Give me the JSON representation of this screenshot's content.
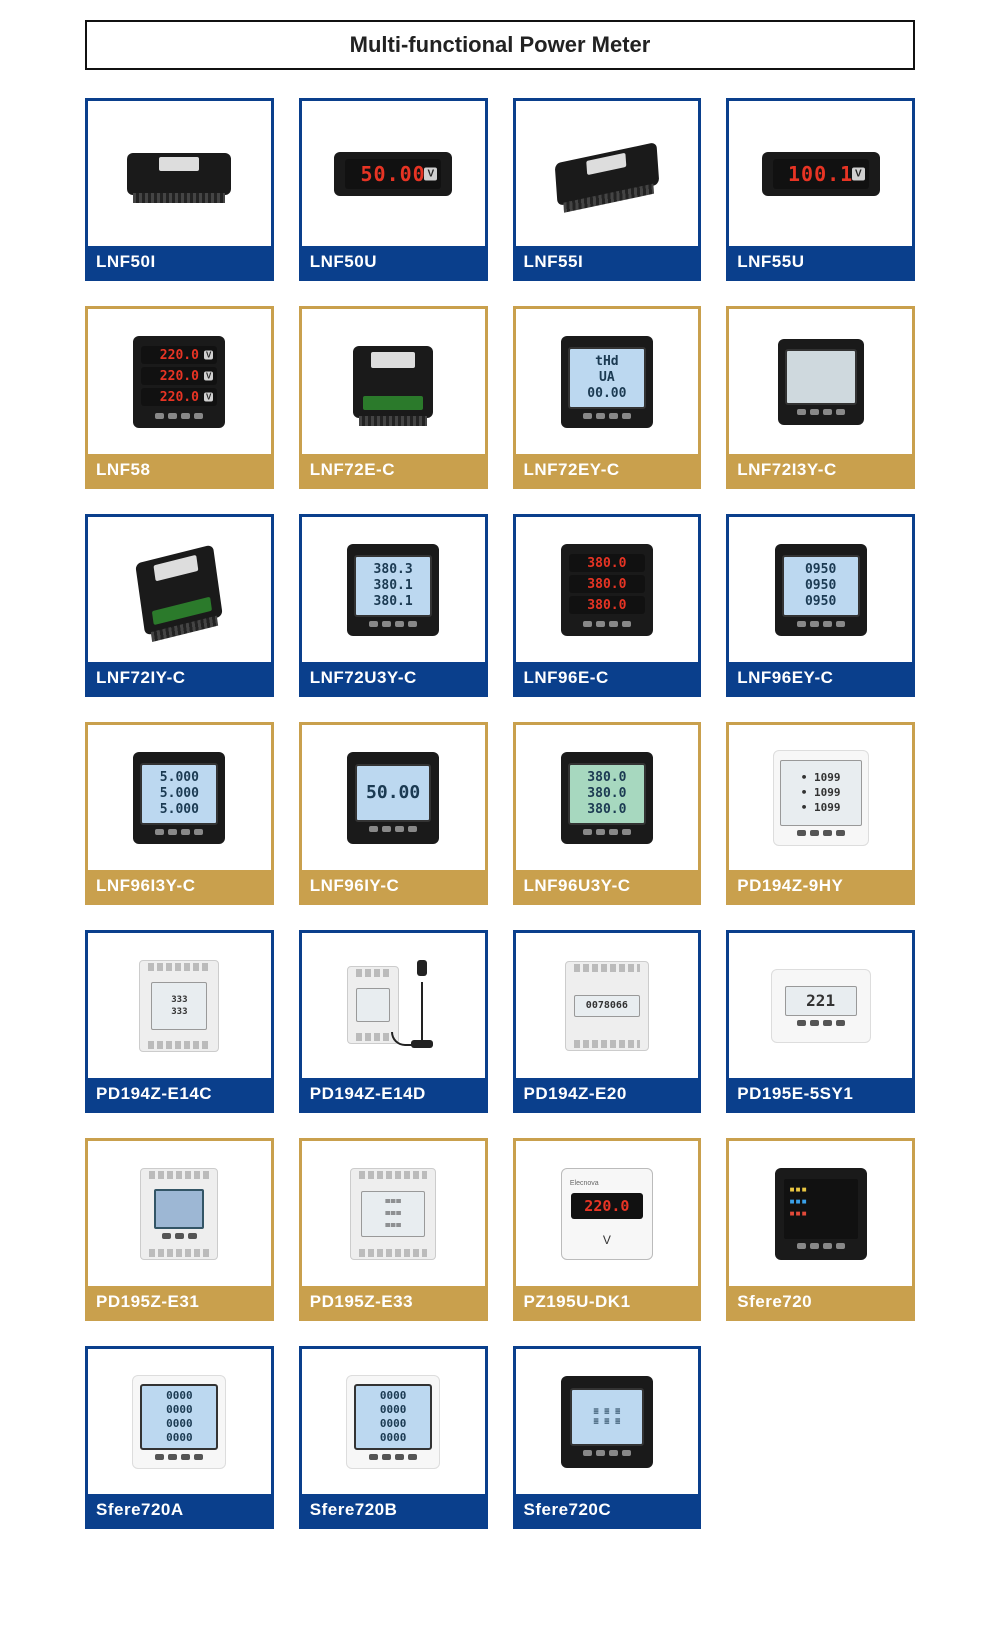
{
  "page": {
    "title": "Multi-functional Power Meter"
  },
  "colors": {
    "border_blue": "#0a3f8c",
    "border_gold": "#c9a04d",
    "led_red": "#e73424",
    "led_green": "#5fe070",
    "lcd_bg": "#bcd8f0"
  },
  "grid": {
    "columns": 4
  },
  "products": [
    {
      "id": "LNF50I",
      "label": "LNF50I",
      "variant": "blue",
      "meter": {
        "type": "rear-terminal-wide",
        "body": "black"
      }
    },
    {
      "id": "LNF50U",
      "label": "LNF50U",
      "variant": "blue",
      "meter": {
        "type": "led-single-wide",
        "body": "black",
        "value": "50.00",
        "unit": "V",
        "color": "red"
      }
    },
    {
      "id": "LNF55I",
      "label": "LNF55I",
      "variant": "blue",
      "meter": {
        "type": "rear-terminal-wide-tilt",
        "body": "black"
      }
    },
    {
      "id": "LNF55U",
      "label": "LNF55U",
      "variant": "blue",
      "meter": {
        "type": "led-single-wide",
        "body": "black",
        "value": "100.1",
        "unit": "V",
        "color": "red"
      }
    },
    {
      "id": "LNF58",
      "label": "LNF58",
      "variant": "gold",
      "meter": {
        "type": "led-3row",
        "body": "black",
        "rows": [
          "220.0",
          "220.0",
          "220.0"
        ],
        "unit": "V",
        "color": "red"
      }
    },
    {
      "id": "LNF72E-C",
      "label": "LNF72E-C",
      "variant": "gold",
      "meter": {
        "type": "rear-terminal-sq",
        "body": "black"
      }
    },
    {
      "id": "LNF72EY-C",
      "label": "LNF72EY-C",
      "variant": "gold",
      "meter": {
        "type": "lcd-3row",
        "body": "black",
        "rows": [
          "tHd",
          "UA",
          "00.00"
        ]
      }
    },
    {
      "id": "LNF72I3Y-C",
      "label": "LNF72I3Y-C",
      "variant": "gold",
      "meter": {
        "type": "lcd-blank",
        "body": "black"
      }
    },
    {
      "id": "LNF72IY-C",
      "label": "LNF72IY-C",
      "variant": "blue",
      "meter": {
        "type": "rear-terminal-sq-tilt",
        "body": "black"
      }
    },
    {
      "id": "LNF72U3Y-C",
      "label": "LNF72U3Y-C",
      "variant": "blue",
      "meter": {
        "type": "lcd-3row",
        "body": "black",
        "rows": [
          "380.3",
          "380.1",
          "380.1"
        ]
      }
    },
    {
      "id": "LNF96E-C",
      "label": "LNF96E-C",
      "variant": "blue",
      "meter": {
        "type": "led-3row",
        "body": "black",
        "rows": [
          "380.0",
          "380.0",
          "380.0"
        ],
        "unit": "",
        "color": "red"
      }
    },
    {
      "id": "LNF96EY-C",
      "label": "LNF96EY-C",
      "variant": "blue",
      "meter": {
        "type": "lcd-3row",
        "body": "black",
        "rows": [
          "0950",
          "0950",
          "0950"
        ]
      }
    },
    {
      "id": "LNF96I3Y-C",
      "label": "LNF96I3Y-C",
      "variant": "gold",
      "meter": {
        "type": "lcd-3row",
        "body": "black",
        "rows": [
          "5.000",
          "5.000",
          "5.000"
        ]
      }
    },
    {
      "id": "LNF96IY-C",
      "label": "LNF96IY-C",
      "variant": "gold",
      "meter": {
        "type": "lcd-1row",
        "body": "black",
        "value": "50.00"
      }
    },
    {
      "id": "LNF96U3Y-C",
      "label": "LNF96U3Y-C",
      "variant": "gold",
      "meter": {
        "type": "lcd-3row-green",
        "body": "black",
        "rows": [
          "380.0",
          "380.0",
          "380.0"
        ]
      }
    },
    {
      "id": "PD194Z-9HY",
      "label": "PD194Z-9HY",
      "variant": "gold",
      "meter": {
        "type": "lcd-panel-white",
        "body": "white",
        "rows": [
          "1099",
          "1099",
          "1099"
        ]
      }
    },
    {
      "id": "PD194Z-E14C",
      "label": "PD194Z-E14C",
      "variant": "blue",
      "meter": {
        "type": "din-dual-lcd",
        "body": "white",
        "rows": [
          "333",
          "333"
        ]
      }
    },
    {
      "id": "PD194Z-E14D",
      "label": "PD194Z-E14D",
      "variant": "blue",
      "meter": {
        "type": "din-antenna",
        "body": "white"
      }
    },
    {
      "id": "PD194Z-E20",
      "label": "PD194Z-E20",
      "variant": "blue",
      "meter": {
        "type": "din-counter",
        "body": "white",
        "value": "0078066"
      }
    },
    {
      "id": "PD195E-5SY1",
      "label": "PD195E-5SY1",
      "variant": "blue",
      "meter": {
        "type": "lcd-single-white",
        "body": "white",
        "value": "221"
      }
    },
    {
      "id": "PD195Z-E31",
      "label": "PD195Z-E31",
      "variant": "gold",
      "meter": {
        "type": "din-screen",
        "body": "white"
      }
    },
    {
      "id": "PD195Z-E33",
      "label": "PD195Z-E33",
      "variant": "gold",
      "meter": {
        "type": "din-lcd-rows",
        "body": "white",
        "rows": [
          "===",
          "===",
          "==="
        ]
      }
    },
    {
      "id": "PZ195U-DK1",
      "label": "PZ195U-DK1",
      "variant": "gold",
      "meter": {
        "type": "led-single-sq",
        "body": "white",
        "value": "220.0",
        "unit": "V",
        "color": "red"
      }
    },
    {
      "id": "Sfere720",
      "label": "Sfere720",
      "variant": "gold",
      "meter": {
        "type": "screen-color",
        "body": "black"
      }
    },
    {
      "id": "Sfere720A",
      "label": "Sfere720A",
      "variant": "blue",
      "meter": {
        "type": "lcd-4row-panel",
        "body": "white",
        "rows": [
          "0000",
          "0000",
          "0000",
          "0000"
        ]
      }
    },
    {
      "id": "Sfere720B",
      "label": "Sfere720B",
      "variant": "blue",
      "meter": {
        "type": "lcd-4row-panel",
        "body": "white",
        "rows": [
          "0000",
          "0000",
          "0000",
          "0000"
        ]
      }
    },
    {
      "id": "Sfere720C",
      "label": "Sfere720C",
      "variant": "blue",
      "meter": {
        "type": "screen-mono",
        "body": "black"
      }
    }
  ]
}
